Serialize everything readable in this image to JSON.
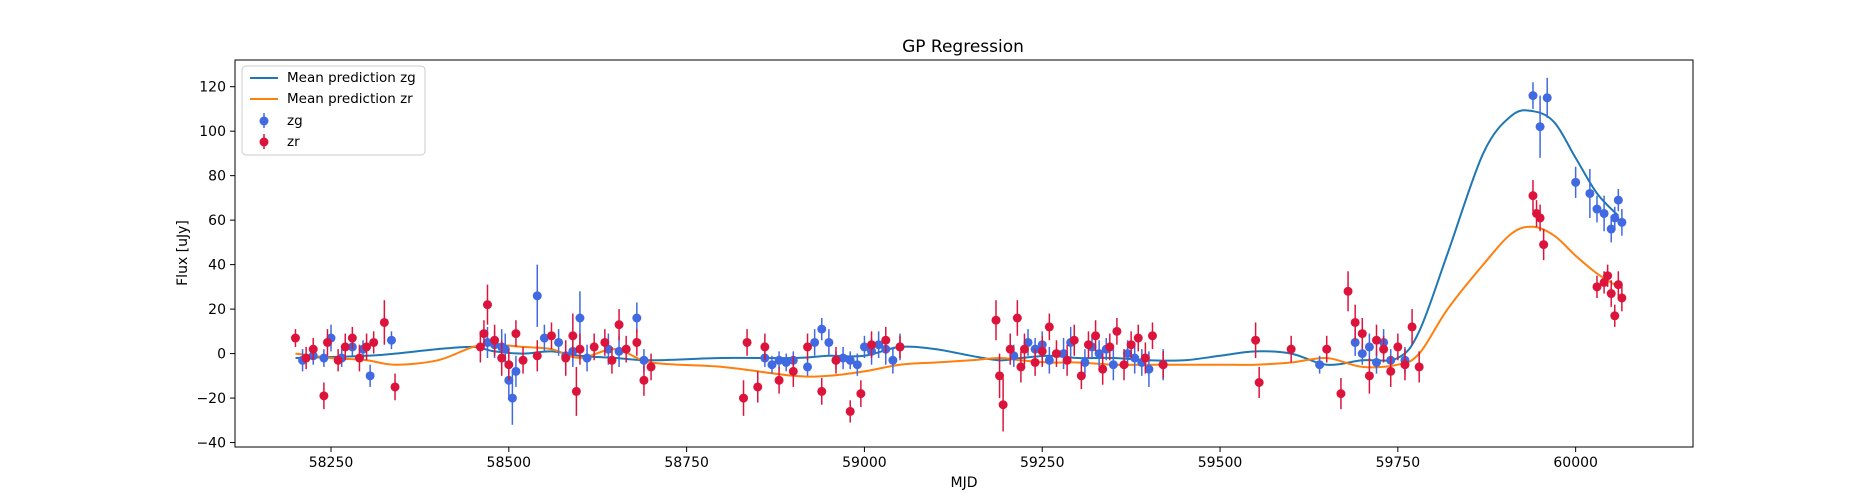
{
  "chart_data": {
    "type": "scatter",
    "title": "GP Regression",
    "xlabel": "MJD",
    "ylabel": "Flux [uJy]",
    "xlim": [
      58115,
      60165
    ],
    "ylim": [
      -42,
      132
    ],
    "x_ticks": [
      58250,
      58500,
      58750,
      59000,
      59250,
      59500,
      59750,
      60000
    ],
    "y_ticks": [
      -40,
      -20,
      0,
      20,
      40,
      60,
      80,
      100,
      120
    ],
    "grid": false,
    "legend_position": "upper-left",
    "legend": [
      "Mean prediction zg",
      "Mean prediction zr",
      "zg",
      "zr"
    ],
    "colors": {
      "mean_zg": "#1f77b4",
      "mean_zr": "#ff7f0e",
      "zg": "#4169e1",
      "zr": "#dc143c"
    },
    "lines": [
      {
        "name": "Mean prediction zg",
        "color": "#1f77b4",
        "x": [
          58200,
          58300,
          58340,
          58400,
          58450,
          58480,
          58520,
          58560,
          58600,
          58650,
          58700,
          58800,
          58900,
          58950,
          59000,
          59050,
          59100,
          59150,
          59190,
          59220,
          59260,
          59300,
          59350,
          59400,
          59450,
          59500,
          59550,
          59600,
          59650,
          59700,
          59750,
          59780,
          59820,
          59870,
          59910,
          59940,
          59970,
          60000,
          60030,
          60060
        ],
        "y": [
          -2,
          -1,
          0,
          2,
          3,
          1,
          0,
          1,
          -1,
          -2,
          -3,
          -2,
          -2,
          -1,
          -1,
          3,
          2,
          -1,
          -3,
          -2,
          -1,
          -2,
          -2,
          -3,
          -3,
          -1,
          1,
          0,
          -5,
          -3,
          -2,
          10,
          45,
          90,
          107,
          109,
          104,
          88,
          72,
          62
        ]
      },
      {
        "name": "Mean prediction zr",
        "color": "#ff7f0e",
        "x": [
          58200,
          58250,
          58300,
          58340,
          58400,
          58450,
          58480,
          58520,
          58560,
          58600,
          58650,
          58700,
          58800,
          58900,
          58950,
          59000,
          59050,
          59100,
          59150,
          59190,
          59220,
          59260,
          59300,
          59350,
          59400,
          59450,
          59500,
          59550,
          59600,
          59650,
          59700,
          59750,
          59780,
          59820,
          59870,
          59910,
          59940,
          59970,
          60000,
          60030,
          60060
        ],
        "y": [
          0,
          -2,
          -3,
          -5,
          -3,
          3,
          4,
          3,
          2,
          -2,
          2,
          -4,
          -6,
          -10,
          -10,
          -8,
          -5,
          -4,
          -3,
          -2,
          -3,
          -4,
          -4,
          -5,
          -5,
          -5,
          -5,
          -5,
          -4,
          -2,
          -6,
          -5,
          0,
          20,
          40,
          54,
          57,
          53,
          44,
          36,
          30
        ]
      }
    ],
    "series": [
      {
        "name": "zg",
        "color": "#4169e1",
        "x": [
          58210,
          58225,
          58240,
          58250,
          58265,
          58280,
          58295,
          58305,
          58335,
          58470,
          58480,
          58490,
          58495,
          58500,
          58505,
          58510,
          58540,
          58550,
          58570,
          58580,
          58590,
          58600,
          58610,
          58640,
          58655,
          58680,
          58690,
          58860,
          58870,
          58880,
          58890,
          58900,
          58920,
          58930,
          58940,
          58950,
          58960,
          58970,
          58980,
          58990,
          59000,
          59010,
          59020,
          59030,
          59040,
          59050,
          59210,
          59230,
          59240,
          59250,
          59260,
          59280,
          59290,
          59310,
          59320,
          59330,
          59340,
          59350,
          59370,
          59380,
          59390,
          59400,
          59420,
          59640,
          59690,
          59700,
          59710,
          59720,
          59730,
          59740,
          59760,
          59940,
          59950,
          59960,
          60000,
          60020,
          60030,
          60040,
          60050,
          60055,
          60060,
          60065
        ],
        "y": [
          -3,
          -1,
          -2,
          7,
          -2,
          3,
          2,
          -10,
          6,
          5,
          4,
          3,
          2,
          -12,
          -20,
          -8,
          26,
          7,
          5,
          -1,
          1,
          16,
          -2,
          2,
          1,
          16,
          -3,
          -2,
          -5,
          -3,
          -4,
          -3,
          -6,
          5,
          11,
          5,
          -3,
          -2,
          -3,
          -5,
          3,
          1,
          4,
          2,
          -3,
          3,
          -1,
          5,
          2,
          4,
          -3,
          0,
          5,
          -4,
          3,
          0,
          2,
          -5,
          0,
          -2,
          -4,
          -7,
          -5,
          -5,
          5,
          0,
          3,
          -4,
          5,
          -3,
          -3,
          116,
          102,
          115,
          77,
          72,
          65,
          63,
          56,
          61,
          69,
          59
        ],
        "err": [
          5,
          4,
          4,
          6,
          4,
          4,
          4,
          5,
          4,
          7,
          6,
          8,
          7,
          9,
          12,
          7,
          14,
          6,
          6,
          5,
          7,
          12,
          6,
          7,
          7,
          7,
          5,
          4,
          4,
          4,
          4,
          4,
          4,
          6,
          5,
          6,
          4,
          5,
          4,
          5,
          5,
          6,
          6,
          7,
          6,
          6,
          5,
          6,
          5,
          6,
          6,
          7,
          7,
          6,
          5,
          6,
          5,
          7,
          6,
          7,
          6,
          8,
          7,
          4,
          6,
          5,
          6,
          5,
          6,
          5,
          6,
          6,
          14,
          9,
          7,
          11,
          6,
          8,
          6,
          5,
          5,
          6
        ]
      },
      {
        "name": "zr",
        "color": "#dc143c",
        "x": [
          58200,
          58215,
          58225,
          58240,
          58245,
          58260,
          58270,
          58280,
          58290,
          58300,
          58310,
          58325,
          58340,
          58460,
          58465,
          58470,
          58480,
          58490,
          58500,
          58510,
          58520,
          58540,
          58560,
          58580,
          58590,
          58595,
          58600,
          58620,
          58635,
          58645,
          58655,
          58665,
          58680,
          58690,
          58700,
          58830,
          58835,
          58850,
          58860,
          58880,
          58900,
          58920,
          58940,
          58960,
          58980,
          58995,
          59010,
          59030,
          59050,
          59185,
          59190,
          59195,
          59205,
          59215,
          59220,
          59225,
          59240,
          59250,
          59260,
          59270,
          59285,
          59295,
          59305,
          59315,
          59325,
          59335,
          59345,
          59355,
          59365,
          59375,
          59385,
          59395,
          59405,
          59420,
          59550,
          59555,
          59600,
          59650,
          59670,
          59680,
          59690,
          59700,
          59710,
          59720,
          59730,
          59740,
          59750,
          59760,
          59770,
          59780,
          59940,
          59945,
          59950,
          59955,
          60030,
          60040,
          60045,
          60050,
          60055,
          60060,
          60065
        ],
        "y": [
          7,
          -2,
          2,
          -19,
          5,
          -3,
          3,
          7,
          -2,
          3,
          5,
          14,
          -15,
          3,
          9,
          22,
          6,
          -2,
          -5,
          9,
          -3,
          -1,
          8,
          -2,
          8,
          -17,
          2,
          3,
          5,
          -3,
          13,
          2,
          5,
          -12,
          -6,
          -20,
          5,
          -15,
          3,
          -12,
          -8,
          3,
          -17,
          -3,
          -26,
          -18,
          4,
          6,
          3,
          15,
          -10,
          -23,
          2,
          16,
          -6,
          2,
          -4,
          1,
          12,
          0,
          -3,
          6,
          -10,
          4,
          8,
          -7,
          3,
          10,
          -5,
          4,
          7,
          -2,
          8,
          -5,
          6,
          -13,
          2,
          2,
          -18,
          28,
          14,
          9,
          -10,
          6,
          2,
          -8,
          3,
          -5,
          12,
          -6,
          71,
          63,
          61,
          49,
          30,
          32,
          35,
          27,
          17,
          31,
          25
        ],
        "err": [
          4,
          5,
          5,
          6,
          6,
          5,
          6,
          5,
          6,
          6,
          5,
          10,
          6,
          7,
          6,
          9,
          7,
          8,
          7,
          6,
          6,
          7,
          6,
          8,
          10,
          11,
          7,
          6,
          6,
          6,
          7,
          6,
          6,
          7,
          6,
          8,
          6,
          7,
          6,
          6,
          7,
          6,
          6,
          6,
          5,
          6,
          6,
          6,
          5,
          9,
          10,
          12,
          7,
          8,
          7,
          7,
          6,
          7,
          6,
          6,
          7,
          7,
          6,
          6,
          7,
          7,
          6,
          6,
          7,
          6,
          6,
          7,
          6,
          6,
          8,
          7,
          6,
          6,
          7,
          9,
          8,
          7,
          8,
          7,
          6,
          7,
          6,
          7,
          8,
          7,
          7,
          6,
          6,
          7,
          5,
          5,
          5,
          6,
          5,
          6,
          6
        ]
      }
    ]
  }
}
